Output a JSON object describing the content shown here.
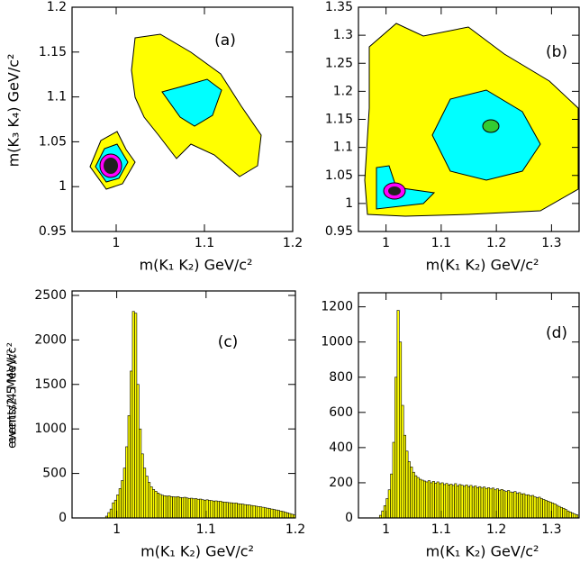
{
  "chart_data": [
    {
      "type": "contour",
      "label": "(a)",
      "xlabel": "m(K₁ K₂) GeV/c²",
      "ylabel": "m(K₃ K₄) GeV/c²",
      "xlim": [
        0.95,
        1.2
      ],
      "ylim": [
        0.95,
        1.2
      ],
      "xticks": [
        1,
        1.1,
        1.2
      ],
      "yticks": [
        0.95,
        1,
        1.05,
        1.1,
        1.15,
        1.2
      ]
    },
    {
      "type": "contour",
      "label": "(b)",
      "xlabel": "m(K₁ K₂) GeV/c²",
      "xlim": [
        0.95,
        1.35
      ],
      "ylim": [
        0.95,
        1.35
      ],
      "xticks": [
        1,
        1.1,
        1.2,
        1.3
      ],
      "yticks": [
        0.95,
        1,
        1.05,
        1.1,
        1.15,
        1.2,
        1.25,
        1.3,
        1.35
      ]
    },
    {
      "type": "histogram",
      "label": "(c)",
      "xlabel": "m(K₁ K₂) GeV/c²",
      "ylabel": "events/2.5 MeV/c²",
      "color": "#ffff00",
      "xlim": [
        0.95,
        1.2
      ],
      "ylim": [
        0,
        2550
      ],
      "xticks": [
        1,
        1.1,
        1.2
      ],
      "yticks": [
        0,
        500,
        1000,
        1500,
        2000,
        2500
      ],
      "bins": [
        0.9875,
        0.99,
        0.9925,
        0.995,
        0.9975,
        1,
        1.0025,
        1.005,
        1.0075,
        1.01,
        1.0125,
        1.015,
        1.0175,
        1.02,
        1.0225,
        1.025,
        1.0275,
        1.03,
        1.0325,
        1.035,
        1.0375,
        1.04,
        1.0425,
        1.045,
        1.0475,
        1.05,
        1.0525,
        1.055,
        1.0575,
        1.06,
        1.0625,
        1.065,
        1.0675,
        1.07,
        1.0725,
        1.075,
        1.0775,
        1.08,
        1.0825,
        1.085,
        1.0875,
        1.09,
        1.0925,
        1.095,
        1.0975,
        1.1,
        1.1025,
        1.105,
        1.1075,
        1.11,
        1.1125,
        1.115,
        1.1175,
        1.12,
        1.1225,
        1.125,
        1.1275,
        1.13,
        1.1325,
        1.135,
        1.1375,
        1.14,
        1.1425,
        1.145,
        1.1475,
        1.15,
        1.1525,
        1.155,
        1.1575,
        1.16,
        1.1625,
        1.165,
        1.1675,
        1.17,
        1.1725,
        1.175,
        1.1775,
        1.18,
        1.1825,
        1.185,
        1.1875,
        1.19,
        1.1925,
        1.195,
        1.1975,
        1.2
      ],
      "values": [
        20,
        60,
        100,
        170,
        200,
        260,
        330,
        420,
        560,
        800,
        1150,
        1650,
        2320,
        2300,
        1500,
        1000,
        720,
        560,
        470,
        400,
        350,
        320,
        300,
        280,
        265,
        255,
        250,
        245,
        248,
        240,
        238,
        235,
        240,
        230,
        228,
        232,
        225,
        220,
        222,
        215,
        218,
        210,
        212,
        205,
        200,
        204,
        198,
        195,
        190,
        192,
        185,
        188,
        180,
        178,
        175,
        172,
        170,
        165,
        168,
        160,
        158,
        155,
        150,
        148,
        145,
        140,
        138,
        132,
        128,
        125,
        120,
        115,
        110,
        105,
        100,
        95,
        90,
        85,
        78,
        72,
        65,
        58,
        50,
        42,
        35
      ]
    },
    {
      "type": "histogram",
      "label": "(d)",
      "xlabel": "m(K₁ K₂) GeV/c²",
      "ylabel": "events/4 MeV/c²",
      "color": "#ffff00",
      "xlim": [
        0.95,
        1.35
      ],
      "ylim": [
        0,
        1280
      ],
      "xticks": [
        1,
        1.1,
        1.2,
        1.3
      ],
      "yticks": [
        0,
        200,
        400,
        600,
        800,
        1000,
        1200
      ],
      "bins": [
        0.988,
        0.992,
        0.996,
        1,
        1.004,
        1.008,
        1.012,
        1.016,
        1.02,
        1.024,
        1.028,
        1.032,
        1.036,
        1.04,
        1.044,
        1.048,
        1.052,
        1.056,
        1.06,
        1.064,
        1.068,
        1.072,
        1.076,
        1.08,
        1.084,
        1.088,
        1.092,
        1.096,
        1.1,
        1.104,
        1.108,
        1.112,
        1.116,
        1.12,
        1.124,
        1.128,
        1.132,
        1.136,
        1.14,
        1.144,
        1.148,
        1.152,
        1.156,
        1.16,
        1.164,
        1.168,
        1.172,
        1.176,
        1.18,
        1.184,
        1.188,
        1.192,
        1.196,
        1.2,
        1.204,
        1.208,
        1.212,
        1.216,
        1.22,
        1.224,
        1.228,
        1.232,
        1.236,
        1.24,
        1.244,
        1.248,
        1.252,
        1.256,
        1.26,
        1.264,
        1.268,
        1.272,
        1.276,
        1.28,
        1.284,
        1.288,
        1.292,
        1.296,
        1.3,
        1.304,
        1.308,
        1.312,
        1.316,
        1.32,
        1.324,
        1.328,
        1.332,
        1.336,
        1.34,
        1.344,
        1.348
      ],
      "values": [
        15,
        40,
        70,
        110,
        160,
        250,
        430,
        800,
        1180,
        1000,
        640,
        470,
        380,
        320,
        290,
        260,
        240,
        230,
        220,
        215,
        210,
        205,
        212,
        200,
        208,
        198,
        205,
        195,
        200,
        190,
        196,
        188,
        192,
        185,
        195,
        182,
        190,
        186,
        180,
        188,
        178,
        185,
        175,
        182,
        172,
        178,
        170,
        176,
        168,
        172,
        165,
        170,
        160,
        166,
        158,
        162,
        155,
        150,
        156,
        148,
        145,
        150,
        140,
        144,
        136,
        138,
        130,
        132,
        125,
        128,
        120,
        115,
        118,
        110,
        105,
        100,
        95,
        90,
        85,
        80,
        72,
        66,
        60,
        55,
        48,
        40,
        34,
        28,
        22,
        18
      ]
    }
  ]
}
